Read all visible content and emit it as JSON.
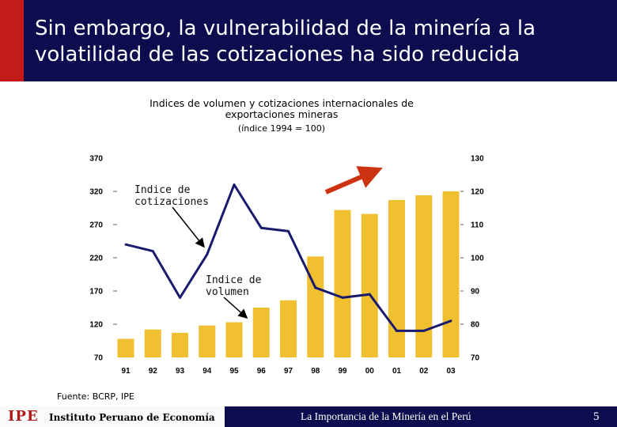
{
  "slide": {
    "title": "Sin embargo, la vulnerabilidad de la minería a la volatilidad de las cotizaciones ha sido reducida",
    "source": "Fuente: BCRP, IPE",
    "page_number": "5",
    "footer_text": "La Importancia de la Minería en el Perú",
    "ipe_mark": "IPE",
    "ipe_name": "Instituto Peruano de Economía"
  },
  "colors": {
    "header_bg": "#0c0c4e",
    "header_red": "#c41a1a",
    "bar": "#f0c030",
    "line": "#1a1a6e",
    "arrow": "#cc3311"
  },
  "chart_data": {
    "type": "bar+line",
    "title": "Indices de volumen y cotizaciones internacionales de exportaciones mineras",
    "subtitle": "(índice 1994 = 100)",
    "categories": [
      "91",
      "92",
      "93",
      "94",
      "95",
      "96",
      "97",
      "98",
      "99",
      "00",
      "01",
      "02",
      "03"
    ],
    "series": [
      {
        "name": "Indice de volumen",
        "type": "bar",
        "axis": "left",
        "values": [
          98,
          112,
          107,
          118,
          123,
          145,
          156,
          222,
          292,
          286,
          307,
          314,
          320
        ]
      },
      {
        "name": "Indice de cotizaciones",
        "type": "line",
        "axis": "right",
        "values": [
          104,
          102,
          88,
          101,
          122,
          109,
          108,
          91,
          88,
          89,
          78,
          78,
          81
        ]
      }
    ],
    "left_axis": {
      "ylim": [
        70,
        370
      ],
      "ticks": [
        "70",
        "120",
        "170",
        "220",
        "270",
        "320",
        "370"
      ]
    },
    "right_axis": {
      "ylim": [
        70,
        130
      ],
      "ticks": [
        "70",
        "80",
        "90",
        "100",
        "110",
        "120",
        "130"
      ]
    },
    "annotations": {
      "cotizaciones": "Indice de cotizaciones",
      "volumen": "Indice de volumen"
    },
    "grid": false
  }
}
